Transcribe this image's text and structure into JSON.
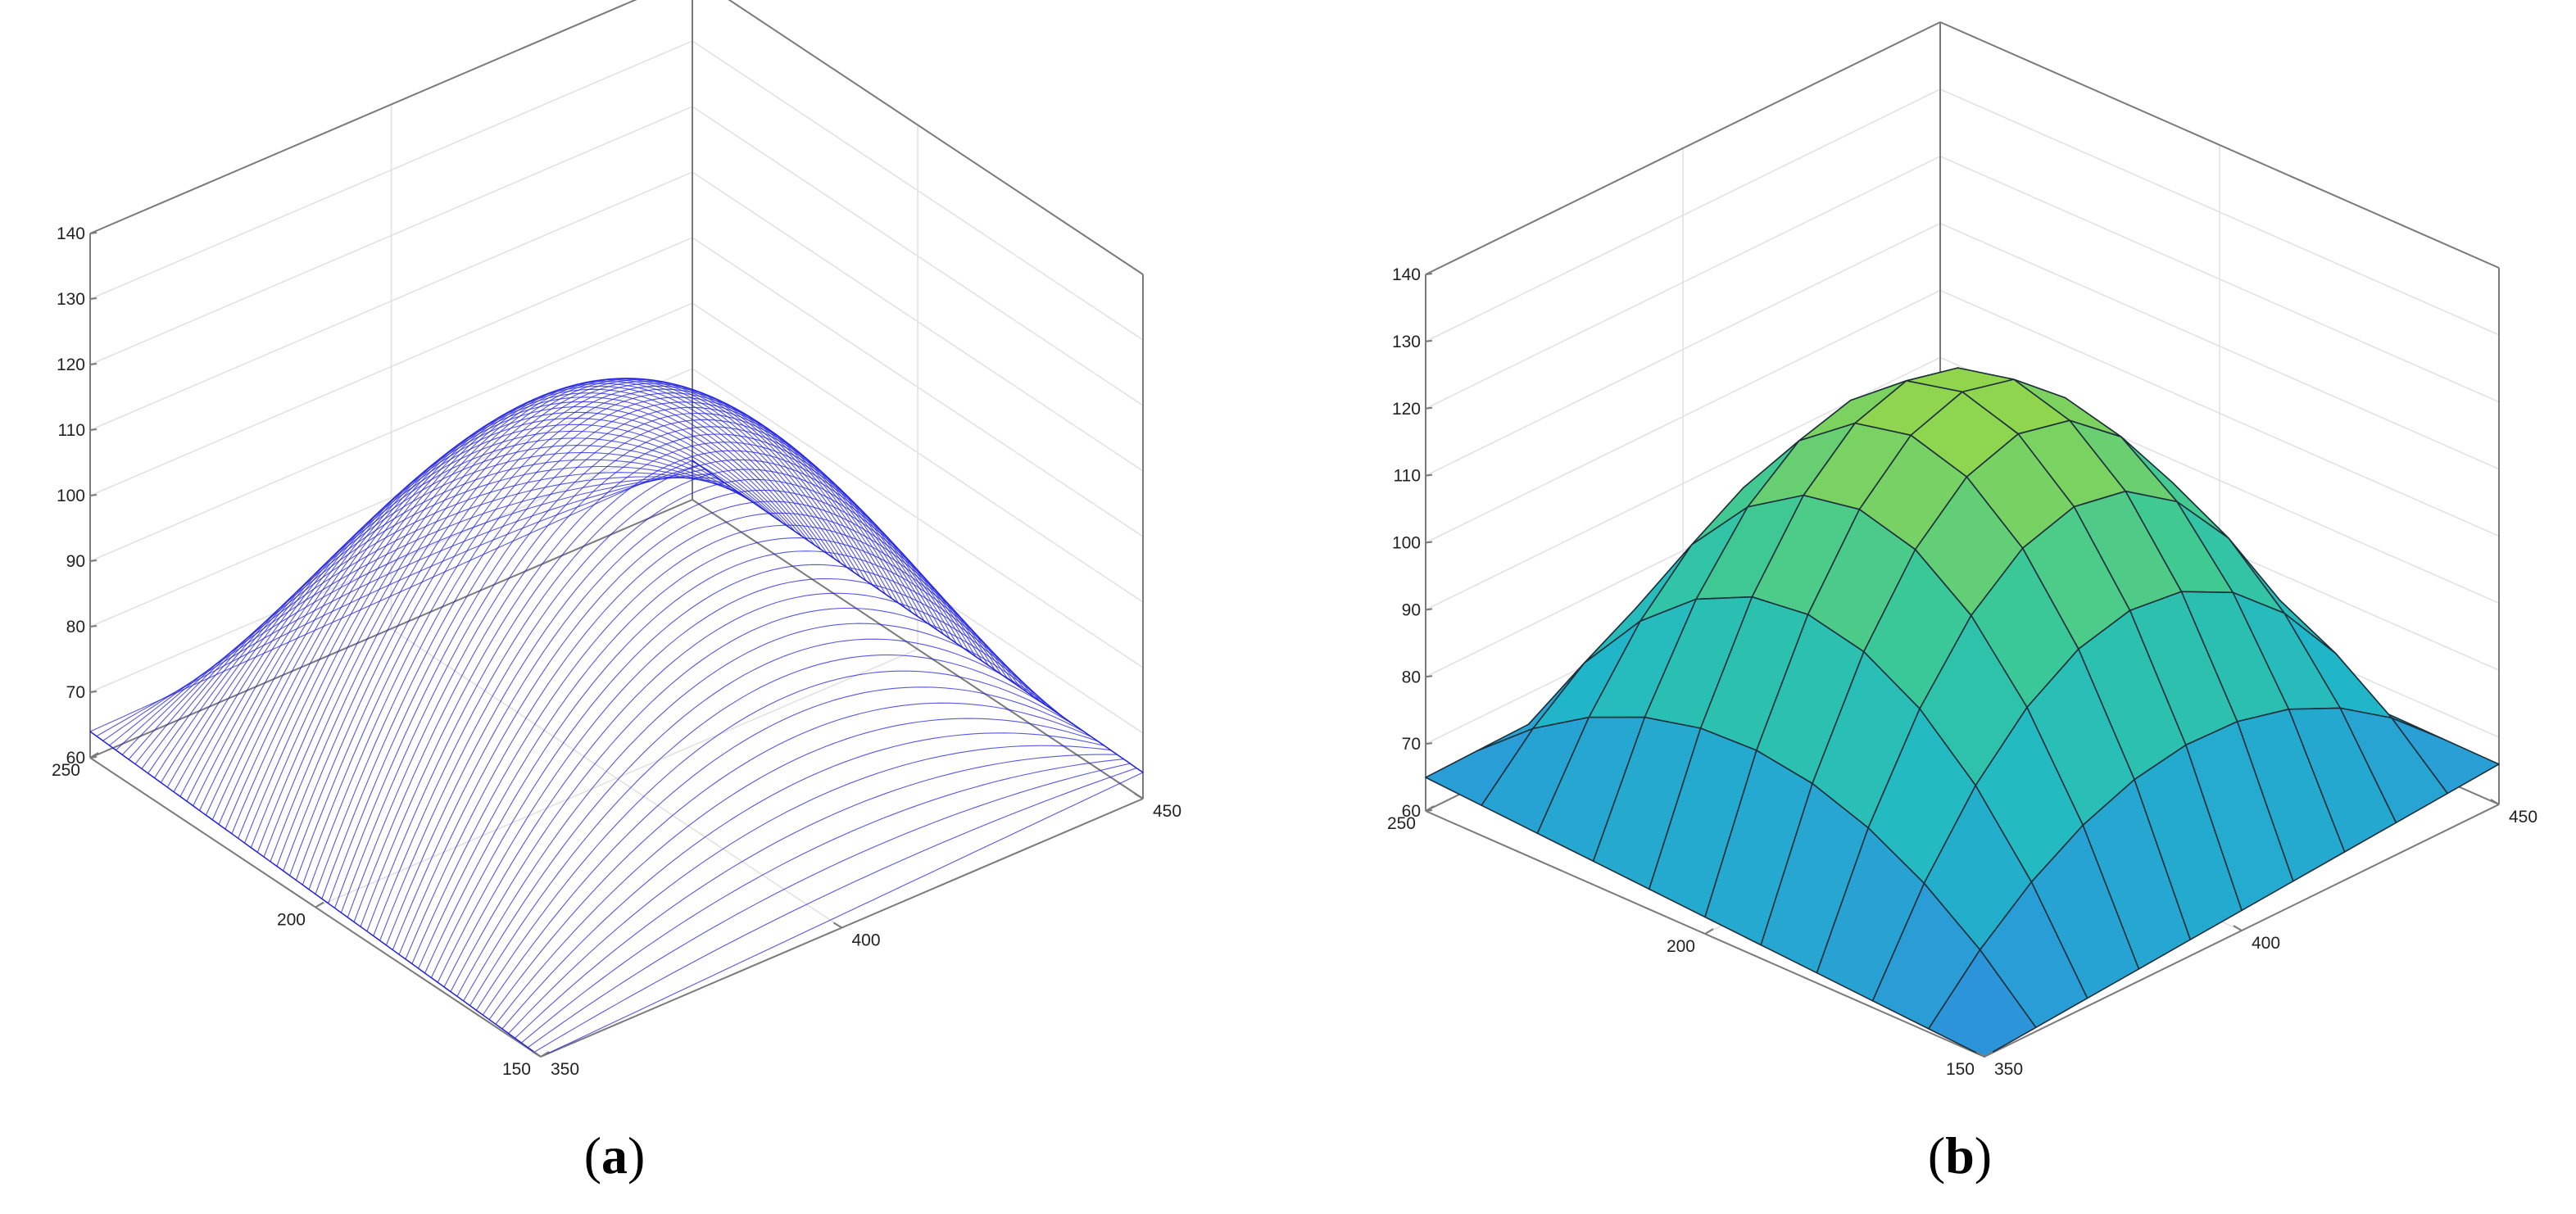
{
  "chart_data": [
    {
      "type": "surface",
      "render": "mesh-lines",
      "panel_label": "a",
      "z_ticks": [
        "60",
        "70",
        "80",
        "90",
        "100",
        "110",
        "120",
        "130",
        "140"
      ],
      "zlim": [
        60,
        140
      ],
      "left_axis_ticks": [
        "150",
        "200",
        "250"
      ],
      "left_axis_range": [
        150,
        250
      ],
      "right_axis_ticks": [
        "350",
        "400",
        "450"
      ],
      "right_axis_range": [
        350,
        450
      ],
      "grid": true,
      "line_color": "#1f1fe0",
      "surface_summary": {
        "peak_value": 116,
        "corner_values": {
          "150_350": 60,
          "250_350": 64,
          "150_450": 64,
          "250_450": 66
        }
      }
    },
    {
      "type": "surface",
      "render": "shaded-faces",
      "panel_label": "b",
      "z_ticks": [
        "60",
        "70",
        "80",
        "90",
        "100",
        "110",
        "120",
        "130",
        "140"
      ],
      "zlim": [
        60,
        140
      ],
      "left_axis_ticks": [
        "150",
        "200",
        "250"
      ],
      "left_axis_range": [
        150,
        250
      ],
      "right_axis_ticks": [
        "350",
        "400",
        "450"
      ],
      "right_axis_range": [
        350,
        450
      ],
      "grid": true,
      "colormap": [
        "#2e90dd",
        "#20b7c8",
        "#36c79c",
        "#95d64a"
      ],
      "surface_summary": {
        "peak_value": 122,
        "corner_values": {
          "150_350": 60,
          "250_350": 65,
          "150_450": 66,
          "250_450": 67
        }
      }
    }
  ]
}
